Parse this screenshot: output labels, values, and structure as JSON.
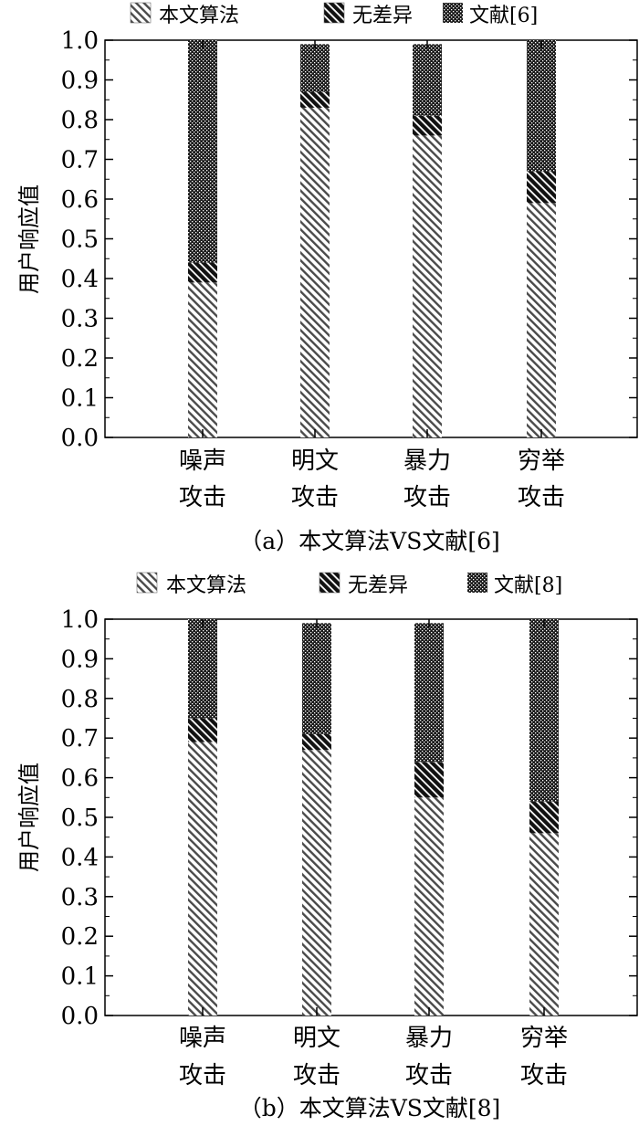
{
  "legend_labels": [
    "本文算法",
    "无差异"
  ],
  "chart_data": [
    {
      "type": "bar",
      "stacked": true,
      "categories": [
        [
          "噪声",
          "攻击"
        ],
        [
          "明文",
          "攻击"
        ],
        [
          "暴力",
          "攻击"
        ],
        [
          "穷举",
          "攻击"
        ]
      ],
      "series": [
        {
          "name": "本文算法",
          "values": [
            0.39,
            0.83,
            0.76,
            0.59
          ]
        },
        {
          "name": "无差异",
          "values": [
            0.05,
            0.04,
            0.05,
            0.08
          ]
        },
        {
          "name": "文献[6]",
          "values": [
            0.56,
            0.12,
            0.18,
            0.33
          ]
        }
      ],
      "ylabel": "用户响应值",
      "ylim": [
        0,
        1.0
      ],
      "yticks": [
        "0.0",
        "0.1",
        "0.2",
        "0.3",
        "0.4",
        "0.5",
        "0.6",
        "0.7",
        "0.8",
        "0.9",
        "1.0"
      ],
      "caption": "（a）本文算法VS文献[6]",
      "legend_position": "top"
    },
    {
      "type": "bar",
      "stacked": true,
      "categories": [
        [
          "噪声",
          "攻击"
        ],
        [
          "明文",
          "攻击"
        ],
        [
          "暴力",
          "攻击"
        ],
        [
          "穷举",
          "攻击"
        ]
      ],
      "series": [
        {
          "name": "本文算法",
          "values": [
            0.69,
            0.67,
            0.55,
            0.46
          ]
        },
        {
          "name": "无差异",
          "values": [
            0.06,
            0.04,
            0.09,
            0.08
          ]
        },
        {
          "name": "文献[8]",
          "values": [
            0.25,
            0.28,
            0.35,
            0.46
          ]
        }
      ],
      "ylabel": "用户响应值",
      "ylim": [
        0,
        1.0
      ],
      "yticks": [
        "0.0",
        "0.1",
        "0.2",
        "0.3",
        "0.4",
        "0.5",
        "0.6",
        "0.7",
        "0.8",
        "0.9",
        "1.0"
      ],
      "caption": "（b）本文算法VS文献[8]",
      "legend_position": "top"
    }
  ]
}
